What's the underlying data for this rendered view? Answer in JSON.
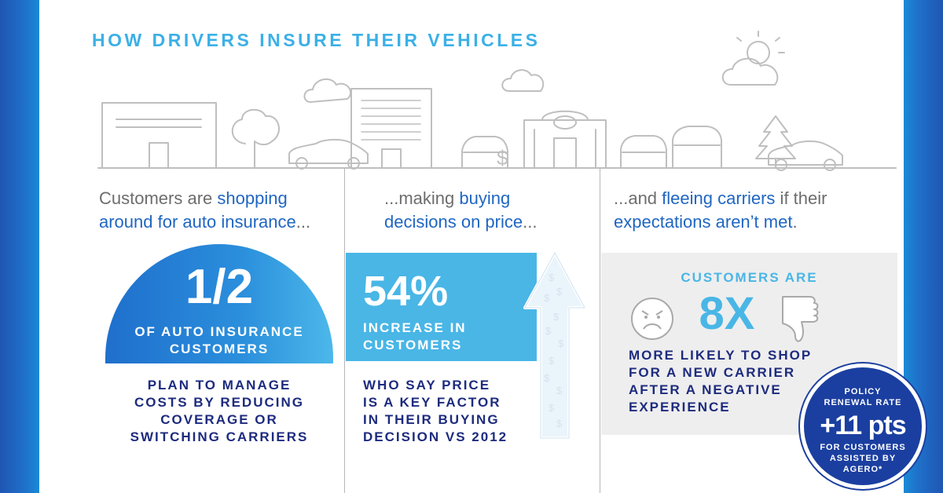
{
  "title": "HOW DRIVERS INSURE THEIR VEHICLES",
  "col1": {
    "head_line1_pre": "Customers are ",
    "head_line1_hl": "shopping",
    "head_line2_hl": "around for auto insurance",
    "head_line2_post": "...",
    "big_stat": "1/2",
    "stat_label": [
      "OF AUTO INSURANCE",
      "CUSTOMERS"
    ],
    "body": [
      "PLAN TO MANAGE",
      "COSTS BY REDUCING",
      "COVERAGE OR",
      "SWITCHING CARRIERS"
    ]
  },
  "col2": {
    "head_line1_pre": "...making ",
    "head_line1_hl": "buying",
    "head_line2_hl": "decisions on price",
    "head_line2_post": "...",
    "big_stat": "54%",
    "stat_label": [
      "INCREASE IN",
      "CUSTOMERS"
    ],
    "body": [
      "WHO SAY PRICE",
      "IS A KEY FACTOR",
      "IN THEIR BUYING",
      "DECISION VS 2012"
    ]
  },
  "col3": {
    "head_line1_pre": "...and ",
    "head_line1_hl": "fleeing carriers",
    "head_line1_post": " if their",
    "head_line2_hl": "expectations aren’t met",
    "head_line2_post": ".",
    "top_label": "CUSTOMERS ARE",
    "big_stat": "8X",
    "body": [
      "MORE LIKELY TO SHOP",
      "FOR A NEW CARRIER",
      "AFTER A NEGATIVE",
      "EXPERIENCE"
    ]
  },
  "badge": {
    "top": [
      "POLICY",
      "RENEWAL RATE"
    ],
    "value": "+11 pts",
    "bottom": [
      "FOR CUSTOMERS",
      "ASSISTED BY",
      "AGERO*"
    ]
  },
  "icons": {
    "sad_face": "sad-face-icon",
    "thumbs_down": "thumbs-down-icon",
    "dollar": "$"
  },
  "colors": {
    "brand_blue": "#1f66c2",
    "light_blue": "#49b6e6",
    "navy": "#1d2b7e",
    "title_blue": "#3bb0e6"
  }
}
